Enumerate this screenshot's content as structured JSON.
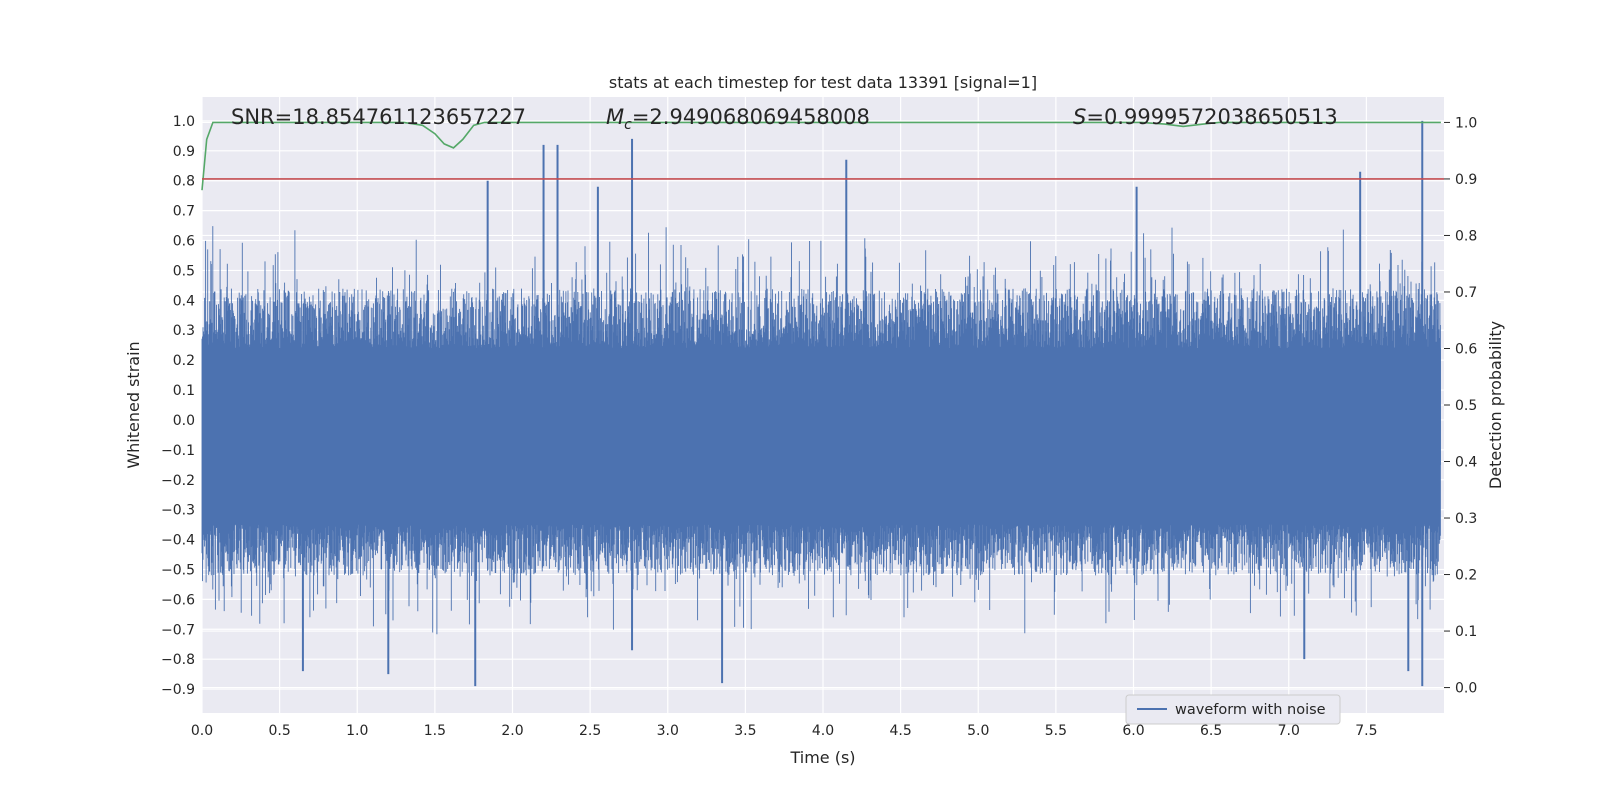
{
  "chart_data": {
    "type": "line",
    "title": "stats at each timestep for test data 13391 [signal=1]",
    "xlabel": "Time (s)",
    "ylabel": "Whitened strain",
    "y2label": "Detection probability",
    "xlim": [
      0.0,
      8.0
    ],
    "ylim": [
      -0.98,
      1.08
    ],
    "y2lim": [
      -0.045,
      1.045
    ],
    "xticks": [
      "0.0",
      "0.5",
      "1.0",
      "1.5",
      "2.0",
      "2.5",
      "3.0",
      "3.5",
      "4.0",
      "4.5",
      "5.0",
      "5.5",
      "6.0",
      "6.5",
      "7.0",
      "7.5"
    ],
    "yticks": [
      "−0.9",
      "−0.8",
      "−0.7",
      "−0.6",
      "−0.5",
      "−0.4",
      "−0.3",
      "−0.2",
      "−0.1",
      "0.0",
      "0.1",
      "0.2",
      "0.3",
      "0.4",
      "0.5",
      "0.6",
      "0.7",
      "0.8",
      "0.9",
      "1.0"
    ],
    "y2ticks": [
      "0.0",
      "0.1",
      "0.2",
      "0.3",
      "0.4",
      "0.5",
      "0.6",
      "0.7",
      "0.8",
      "0.9",
      "1.0"
    ],
    "grid": true,
    "legend_position": "lower-right",
    "annotations": {
      "snr": "SNR=18.854761123657227",
      "mc_symbol": "M",
      "mc_subscript": "c",
      "mc_value": "=2.949068069458008",
      "s_symbol": "S",
      "s_value": "=0.9999572038650513"
    },
    "series": [
      {
        "name": "waveform with noise",
        "axis": "left",
        "color": "#4c72b0",
        "style": "dense noise",
        "envelope_typical": [
          -0.5,
          0.5
        ],
        "peaks": [
          {
            "x": 2.2,
            "y": 0.92
          },
          {
            "x": 2.29,
            "y": 0.92
          },
          {
            "x": 2.77,
            "y": 0.94
          },
          {
            "x": 4.15,
            "y": 0.87
          },
          {
            "x": 7.46,
            "y": 0.83
          },
          {
            "x": 7.86,
            "y": 1.0
          },
          {
            "x": 1.84,
            "y": 0.8
          },
          {
            "x": 2.55,
            "y": 0.78
          },
          {
            "x": 6.02,
            "y": 0.78
          }
        ],
        "troughs": [
          {
            "x": 1.76,
            "y": -0.89
          },
          {
            "x": 3.35,
            "y": -0.88
          },
          {
            "x": 7.86,
            "y": -0.89
          },
          {
            "x": 0.65,
            "y": -0.84
          },
          {
            "x": 1.2,
            "y": -0.85
          },
          {
            "x": 7.77,
            "y": -0.84
          },
          {
            "x": 7.1,
            "y": -0.8
          },
          {
            "x": 2.77,
            "y": -0.77
          }
        ]
      },
      {
        "name": "",
        "axis": "right",
        "color": "#55a868",
        "points": [
          [
            0.0,
            0.88
          ],
          [
            0.03,
            0.97
          ],
          [
            0.07,
            1.0
          ],
          [
            1.3,
            1.0
          ],
          [
            1.42,
            0.995
          ],
          [
            1.5,
            0.98
          ],
          [
            1.56,
            0.962
          ],
          [
            1.62,
            0.955
          ],
          [
            1.68,
            0.97
          ],
          [
            1.75,
            0.995
          ],
          [
            1.82,
            1.0
          ],
          [
            6.05,
            1.0
          ],
          [
            6.2,
            0.997
          ],
          [
            6.32,
            0.993
          ],
          [
            6.45,
            0.997
          ],
          [
            6.55,
            1.0
          ],
          [
            7.98,
            1.0
          ]
        ]
      },
      {
        "name": "",
        "axis": "right",
        "color": "#c44e52",
        "points": [
          [
            0.0,
            0.9
          ],
          [
            8.0,
            0.9
          ]
        ]
      }
    ]
  }
}
